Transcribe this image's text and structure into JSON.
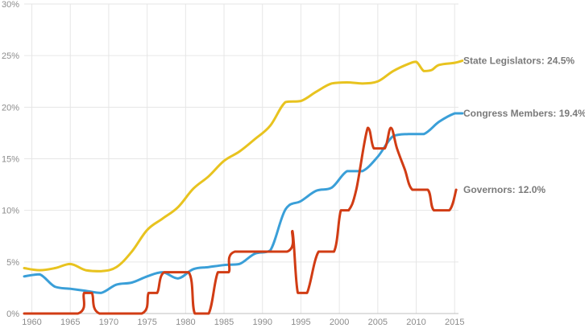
{
  "chart_data": {
    "type": "line",
    "title": "",
    "xlabel": "",
    "ylabel": "",
    "xlim": [
      1959,
      2015.5
    ],
    "ylim": [
      0,
      30
    ],
    "grid": true,
    "x_ticks": [
      1960,
      1965,
      1970,
      1975,
      1980,
      1985,
      1990,
      1995,
      2000,
      2005,
      2010,
      2015
    ],
    "y_ticks": [
      0,
      5,
      10,
      15,
      20,
      25,
      30
    ],
    "y_tick_labels": [
      "0%",
      "5%",
      "10%",
      "15%",
      "20%",
      "25%",
      "30%"
    ],
    "series": [
      {
        "name": "State Legislators",
        "color": "#e8c31f",
        "end_label": "State Legislators: 24.5%",
        "points": [
          [
            1959,
            4.4
          ],
          [
            1961,
            4.2
          ],
          [
            1963,
            4.4
          ],
          [
            1965,
            4.8
          ],
          [
            1967,
            4.2
          ],
          [
            1969,
            4.1
          ],
          [
            1971,
            4.5
          ],
          [
            1973,
            6.0
          ],
          [
            1975,
            8.1
          ],
          [
            1977,
            9.2
          ],
          [
            1979,
            10.3
          ],
          [
            1981,
            12.1
          ],
          [
            1983,
            13.3
          ],
          [
            1985,
            14.8
          ],
          [
            1987,
            15.7
          ],
          [
            1989,
            16.9
          ],
          [
            1991,
            18.2
          ],
          [
            1993,
            20.5
          ],
          [
            1995,
            20.6
          ],
          [
            1997,
            21.5
          ],
          [
            1999,
            22.3
          ],
          [
            2001,
            22.4
          ],
          [
            2003,
            22.3
          ],
          [
            2005,
            22.5
          ],
          [
            2007,
            23.5
          ],
          [
            2009,
            24.2
          ],
          [
            2010,
            24.4
          ],
          [
            2011,
            23.5
          ],
          [
            2012,
            23.6
          ],
          [
            2013,
            24.1
          ],
          [
            2015,
            24.3
          ],
          [
            2016,
            24.5
          ]
        ]
      },
      {
        "name": "Congress Members",
        "color": "#3a9fd8",
        "end_label": "Congress Members: 19.4%",
        "points": [
          [
            1959,
            3.6
          ],
          [
            1961,
            3.8
          ],
          [
            1963,
            2.6
          ],
          [
            1965,
            2.4
          ],
          [
            1967,
            2.2
          ],
          [
            1969,
            2.0
          ],
          [
            1971,
            2.8
          ],
          [
            1973,
            3.0
          ],
          [
            1975,
            3.6
          ],
          [
            1977,
            4.0
          ],
          [
            1979,
            3.4
          ],
          [
            1981,
            4.3
          ],
          [
            1983,
            4.5
          ],
          [
            1985,
            4.7
          ],
          [
            1987,
            4.8
          ],
          [
            1989,
            5.8
          ],
          [
            1991,
            6.1
          ],
          [
            1993,
            10.1
          ],
          [
            1995,
            10.9
          ],
          [
            1997,
            11.9
          ],
          [
            1999,
            12.2
          ],
          [
            2001,
            13.8
          ],
          [
            2003,
            13.8
          ],
          [
            2005,
            15.2
          ],
          [
            2007,
            17.2
          ],
          [
            2009,
            17.4
          ],
          [
            2011,
            17.4
          ],
          [
            2013,
            18.6
          ],
          [
            2015,
            19.4
          ],
          [
            2016,
            19.4
          ]
        ]
      },
      {
        "name": "Governors",
        "color": "#d13c14",
        "end_label": "Governors: 12.0%",
        "points": [
          [
            1959,
            0
          ],
          [
            1966,
            0
          ],
          [
            1966.8,
            2
          ],
          [
            1967.8,
            2
          ],
          [
            1968.8,
            0
          ],
          [
            1974.3,
            0
          ],
          [
            1975.2,
            2
          ],
          [
            1976.3,
            2
          ],
          [
            1977.2,
            4
          ],
          [
            1980.4,
            4
          ],
          [
            1981.2,
            0
          ],
          [
            1983,
            0
          ],
          [
            1984.2,
            4
          ],
          [
            1985.6,
            4
          ],
          [
            1986.4,
            6
          ],
          [
            1993.2,
            6
          ],
          [
            1993.9,
            8
          ],
          [
            1994.6,
            2
          ],
          [
            1995.8,
            2
          ],
          [
            1997.3,
            6
          ],
          [
            1999.3,
            6
          ],
          [
            2000.2,
            10
          ],
          [
            2001.2,
            10
          ],
          [
            2002.2,
            12
          ],
          [
            2003.7,
            18
          ],
          [
            2004.5,
            16
          ],
          [
            2005.9,
            16
          ],
          [
            2006.7,
            18
          ],
          [
            2007.5,
            16
          ],
          [
            2008.5,
            14
          ],
          [
            2009.5,
            12
          ],
          [
            2011.5,
            12
          ],
          [
            2012.3,
            10
          ],
          [
            2014.3,
            10
          ],
          [
            2015.2,
            12
          ]
        ]
      }
    ]
  }
}
